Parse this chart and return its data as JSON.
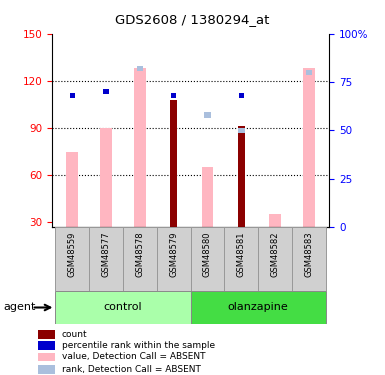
{
  "title": "GDS2608 / 1380294_at",
  "samples": [
    "GSM48559",
    "GSM48577",
    "GSM48578",
    "GSM48579",
    "GSM48580",
    "GSM48581",
    "GSM48582",
    "GSM48583"
  ],
  "value_absent": [
    75,
    90,
    128,
    null,
    65,
    null,
    35,
    128
  ],
  "rank_absent_pct": [
    null,
    null,
    82,
    null,
    58,
    50,
    null,
    80
  ],
  "count_value": [
    null,
    null,
    null,
    108,
    null,
    91,
    null,
    null
  ],
  "percentile_rank_pct": [
    68,
    70,
    null,
    68,
    null,
    68,
    null,
    null
  ],
  "ylim_left": [
    27,
    150
  ],
  "ylim_right": [
    0,
    100
  ],
  "yticks_left": [
    30,
    60,
    90,
    120,
    150
  ],
  "yticks_right": [
    0,
    25,
    50,
    75,
    100
  ],
  "ytick_right_labels": [
    "0",
    "25",
    "50",
    "75",
    "100%"
  ],
  "color_count": "#8B0000",
  "color_percentile": "#0000CC",
  "color_value_absent": "#FFB6C1",
  "color_rank_absent": "#AABFDD",
  "control_color_light": "#BBFFBB",
  "control_color_dark": "#44CC44",
  "olanzapine_color_light": "#55DD55",
  "bar_width": 0.35,
  "legend_items": [
    {
      "label": "count",
      "color": "#8B0000"
    },
    {
      "label": "percentile rank within the sample",
      "color": "#0000CC"
    },
    {
      "label": "value, Detection Call = ABSENT",
      "color": "#FFB6C1"
    },
    {
      "label": "rank, Detection Call = ABSENT",
      "color": "#AABFDD"
    }
  ]
}
